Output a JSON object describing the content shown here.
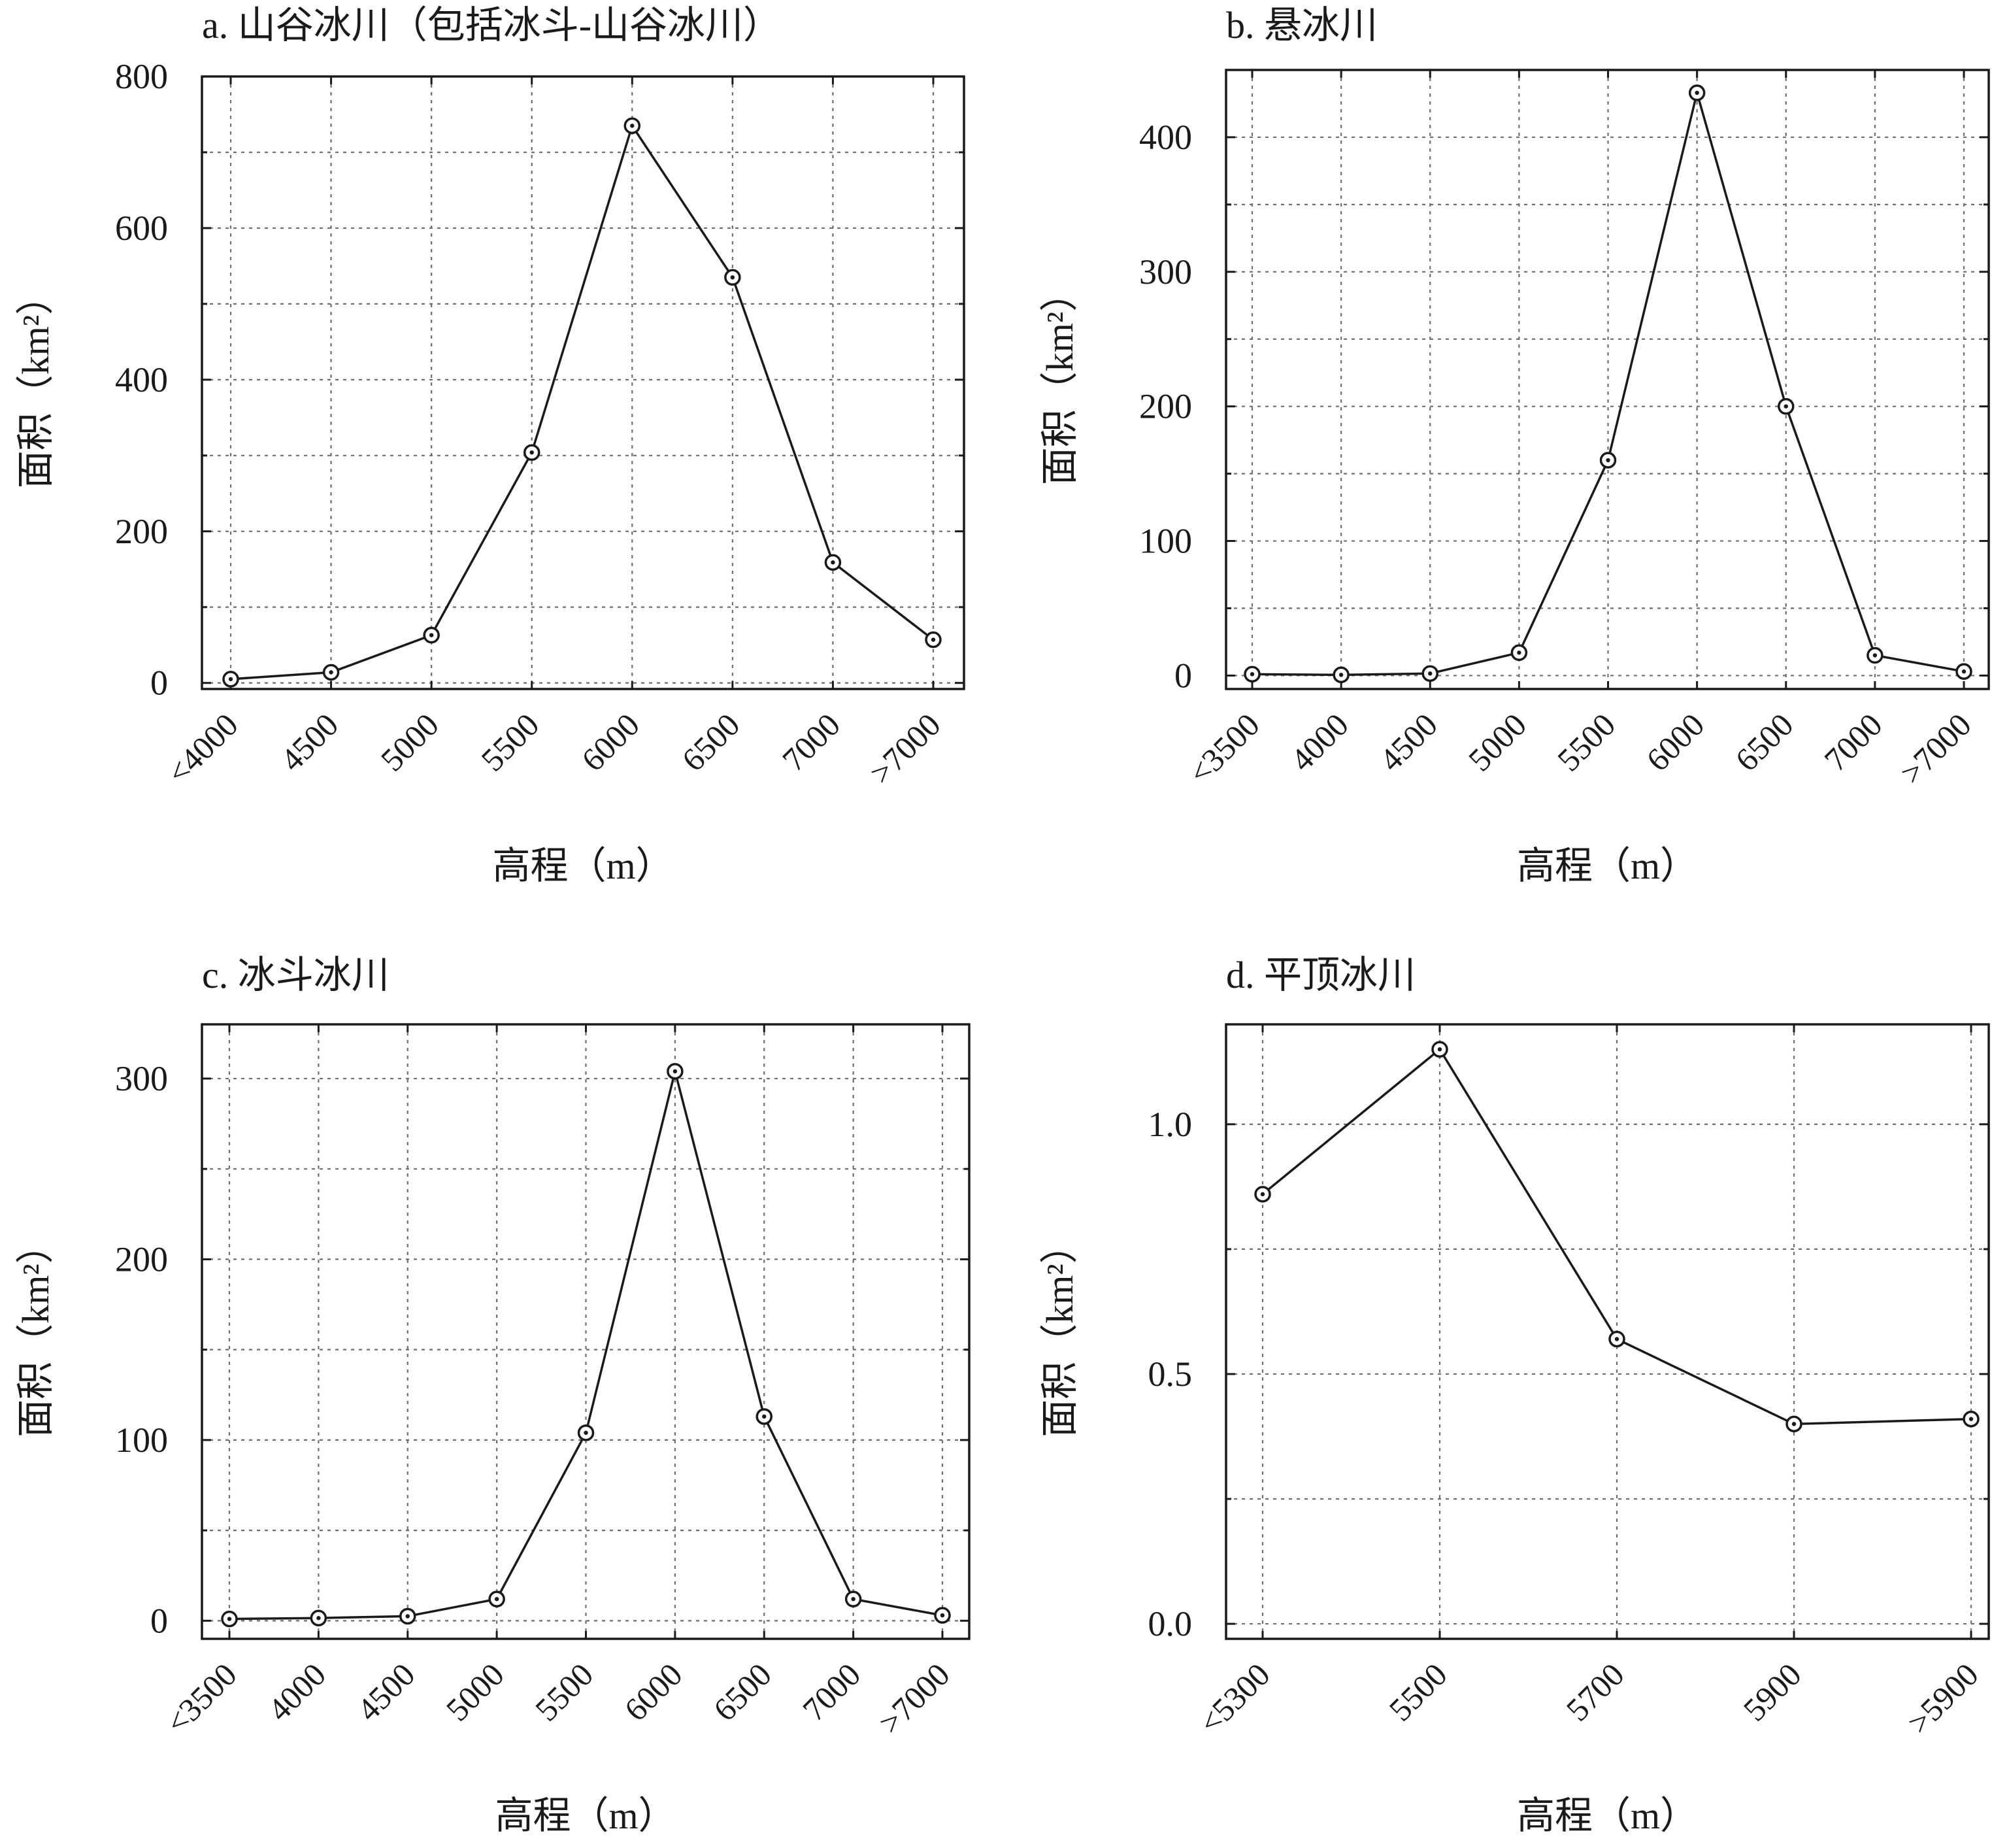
{
  "chart_data": [
    {
      "id": "a",
      "type": "line",
      "title": "a. 山谷冰川（包括冰斗-山谷冰川）",
      "xlabel": "高程（m）",
      "ylabel": "面积（km²）",
      "categories": [
        "<4000",
        "4500",
        "5000",
        "5500",
        "6000",
        "6500",
        "7000",
        ">7000"
      ],
      "values": [
        5,
        14,
        63,
        304,
        735,
        535,
        159,
        57
      ],
      "ylim": [
        -8,
        800
      ],
      "yticks": [
        0,
        200,
        400,
        600,
        800
      ],
      "ytick_labels": [
        "0",
        "200",
        "400",
        "600",
        "800"
      ],
      "grid": true,
      "marker": "open-circle-with-dot"
    },
    {
      "id": "b",
      "type": "line",
      "title": "b. 悬冰川",
      "xlabel": "高程（m）",
      "ylabel": "面积（km²）",
      "categories": [
        "<3500",
        "4000",
        "4500",
        "5000",
        "5500",
        "6000",
        "6500",
        "7000",
        ">7000"
      ],
      "values": [
        1,
        0.5,
        1.5,
        17,
        160,
        433,
        200,
        15,
        3
      ],
      "ylim": [
        -10,
        450
      ],
      "yticks": [
        0,
        100,
        200,
        300,
        400
      ],
      "ytick_labels": [
        "0",
        "100",
        "200",
        "300",
        "400"
      ],
      "grid": true,
      "marker": "open-circle-with-dot"
    },
    {
      "id": "c",
      "type": "line",
      "title": "c. 冰斗冰川",
      "xlabel": "高程（m）",
      "ylabel": "面积（km²）",
      "categories": [
        "<3500",
        "4000",
        "4500",
        "5000",
        "5500",
        "6000",
        "6500",
        "7000",
        ">7000"
      ],
      "values": [
        1,
        1.5,
        2.5,
        12,
        104,
        304,
        113,
        12,
        3
      ],
      "ylim": [
        -10,
        330
      ],
      "yticks": [
        0,
        100,
        200,
        300
      ],
      "ytick_labels": [
        "0",
        "100",
        "200",
        "300"
      ],
      "grid": true,
      "marker": "open-circle-with-dot"
    },
    {
      "id": "d",
      "type": "line",
      "title": "d. 平顶冰川",
      "xlabel": "高程（m）",
      "ylabel": "面积（km²）",
      "categories": [
        "<5300",
        "5500",
        "5700",
        "5900",
        ">5900"
      ],
      "values": [
        0.86,
        1.15,
        0.57,
        0.4,
        0.41
      ],
      "ylim": [
        -0.03,
        1.2
      ],
      "yticks": [
        0,
        0.5,
        1.0
      ],
      "ytick_labels": [
        "0.0",
        "0.5",
        "1.0"
      ],
      "grid": true,
      "marker": "open-circle-with-dot"
    }
  ]
}
